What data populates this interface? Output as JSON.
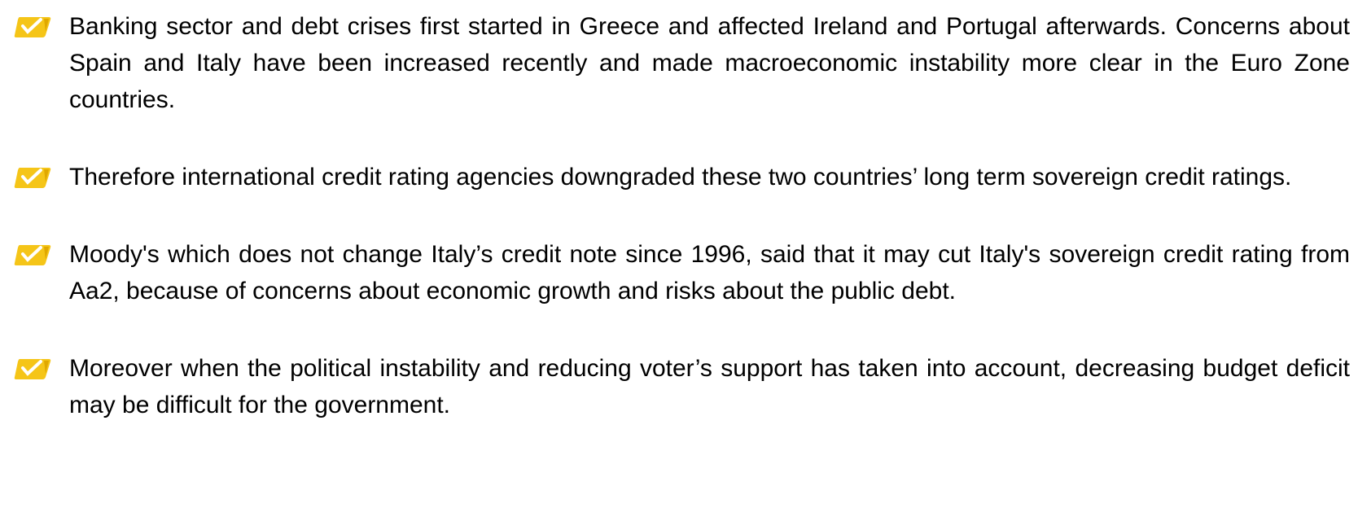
{
  "bullets": [
    "Banking sector and debt crises first started in Greece and affected Ireland and Portugal afterwards. Concerns about Spain and Italy have been increased recently and made macroeconomic instability more clear in the Euro Zone countries.",
    "Therefore international credit rating agencies downgraded these two countries’ long term sovereign credit ratings.",
    "Moody's which does not change Italy’s credit note since 1996, said that it may cut Italy's sovereign credit rating from Aa2, because of concerns about economic growth and risks about the public debt.",
    "Moreover when the political instability and reducing voter’s support has taken into account, decreasing budget deficit may be difficult for the government."
  ]
}
